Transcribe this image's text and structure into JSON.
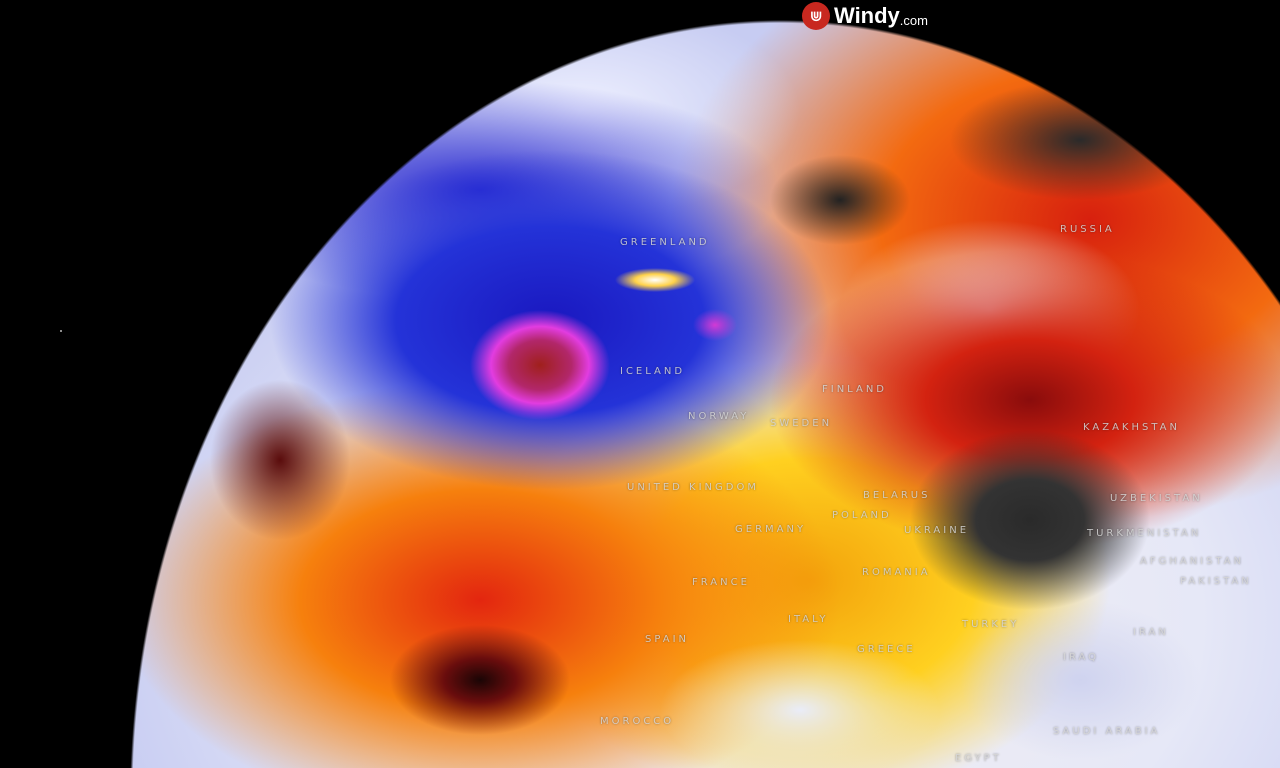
{
  "brand": {
    "logo_icon": "windy-logo-icon",
    "name": "Windy",
    "suffix": ".com",
    "accent": "#c8281f"
  },
  "map": {
    "type": "globe-temperature-wind",
    "labels": [
      {
        "id": "greenland",
        "text": "GREENLAND"
      },
      {
        "id": "iceland",
        "text": "ICELAND"
      },
      {
        "id": "russia",
        "text": "RUSSIA"
      },
      {
        "id": "finland",
        "text": "FINLAND"
      },
      {
        "id": "norway",
        "text": "NORWAY"
      },
      {
        "id": "sweden",
        "text": "SWEDEN"
      },
      {
        "id": "united-kingdom",
        "text": "UNITED KINGDOM"
      },
      {
        "id": "belarus",
        "text": "BELARUS"
      },
      {
        "id": "poland",
        "text": "POLAND"
      },
      {
        "id": "germany",
        "text": "GERMANY"
      },
      {
        "id": "ukraine",
        "text": "UKRAINE"
      },
      {
        "id": "kazakhstan",
        "text": "KAZAKHSTAN"
      },
      {
        "id": "uzbekistan",
        "text": "UZBEKISTAN"
      },
      {
        "id": "turkmenistan",
        "text": "TURKMENISTAN"
      },
      {
        "id": "afghanistan",
        "text": "AFGHANISTAN"
      },
      {
        "id": "pakistan",
        "text": "PAKISTAN"
      },
      {
        "id": "france",
        "text": "FRANCE"
      },
      {
        "id": "romania",
        "text": "ROMANIA"
      },
      {
        "id": "spain",
        "text": "SPAIN"
      },
      {
        "id": "italy",
        "text": "ITALY"
      },
      {
        "id": "greece",
        "text": "GREECE"
      },
      {
        "id": "turkey",
        "text": "TURKEY"
      },
      {
        "id": "iran",
        "text": "IRAN"
      },
      {
        "id": "iraq",
        "text": "IRAQ"
      },
      {
        "id": "saudi-arabia",
        "text": "SAUDI ARABIA"
      },
      {
        "id": "morocco",
        "text": "MOROCCO"
      },
      {
        "id": "egypt",
        "text": "EGYPT"
      }
    ]
  }
}
